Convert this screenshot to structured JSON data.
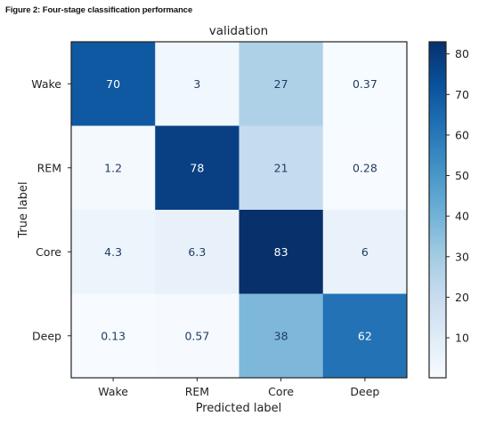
{
  "figure": {
    "caption": "Figure 2: Four-stage classification performance"
  },
  "chart_data": {
    "type": "heatmap",
    "title": "validation",
    "xlabel": "Predicted label",
    "ylabel": "True label",
    "x_categories": [
      "Wake",
      "REM",
      "Core",
      "Deep"
    ],
    "y_categories": [
      "Wake",
      "REM",
      "Core",
      "Deep"
    ],
    "cells": [
      [
        "70",
        "3",
        "27",
        "0.37"
      ],
      [
        "1.2",
        "78",
        "21",
        "0.28"
      ],
      [
        "4.3",
        "6.3",
        "83",
        "6"
      ],
      [
        "0.13",
        "0.57",
        "38",
        "62"
      ]
    ],
    "colorbar": {
      "colormap": "Blues",
      "min": 0.13,
      "max": 83,
      "ticks": [
        10,
        20,
        30,
        40,
        50,
        60,
        70,
        80
      ]
    },
    "colors": {
      "light": "#f7fbff",
      "dark": "#08306b",
      "text_on_light": "#1f3a5f",
      "text_on_dark": "#ffffff"
    }
  }
}
